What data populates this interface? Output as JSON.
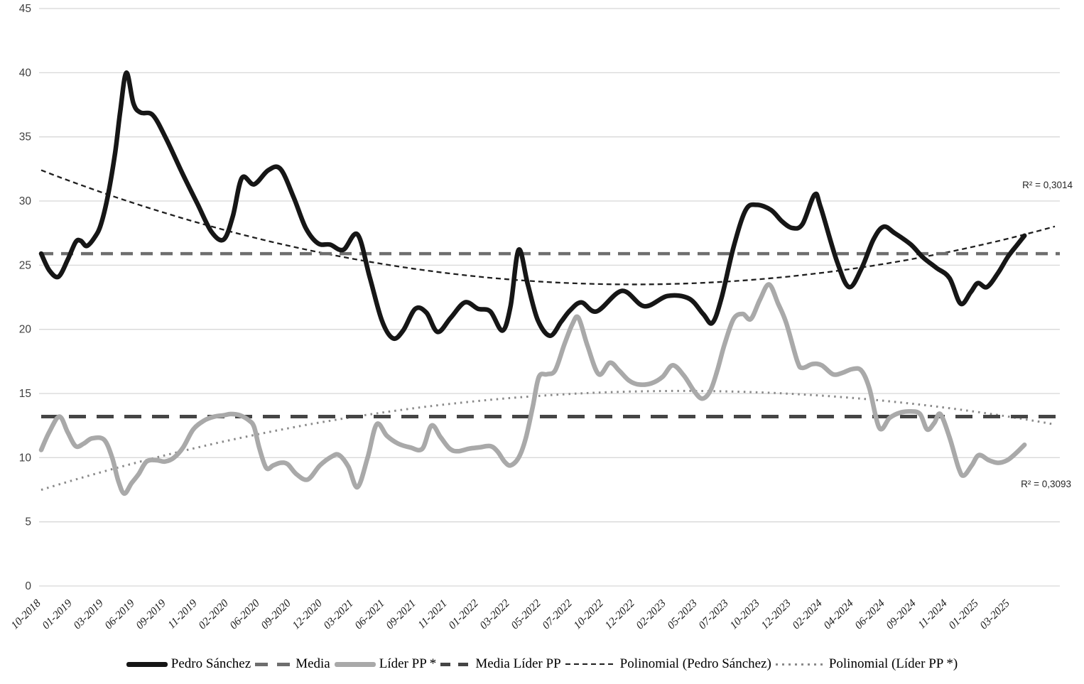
{
  "chart_data": {
    "type": "line",
    "title": "",
    "ylabel": "",
    "xlabel": "",
    "ylim": [
      0,
      45
    ],
    "y_tick_step": 5,
    "y_tick_labels": [
      "0",
      "5",
      "10",
      "15",
      "20",
      "25",
      "30",
      "35",
      "40",
      "45"
    ],
    "grid": "horizontal",
    "legend_position": "bottom",
    "x_tick_labels": [
      "10-2018",
      "01-2019",
      "03-2019",
      "06-2019",
      "09-2019",
      "11-2019",
      "02-2020",
      "06-2020",
      "09-2020",
      "12-2020",
      "03-2021",
      "06-2021",
      "09-2021",
      "11-2021",
      "01-2022",
      "03-2022",
      "05-2022",
      "07-2022",
      "10-2022",
      "12-2022",
      "02-2023",
      "05-2023",
      "07-2023",
      "10-2023",
      "12-2023",
      "02-2024",
      "04-2024",
      "06-2024",
      "09-2024",
      "11-2024",
      "01-2025",
      "03-2025"
    ],
    "series": [
      {
        "name": "Pedro Sánchez",
        "color": "#161616",
        "width": 6.5,
        "style": "solid",
        "points": [
          [
            0.0,
            25.9
          ],
          [
            0.008,
            24.6
          ],
          [
            0.017,
            24.1
          ],
          [
            0.026,
            25.4
          ],
          [
            0.034,
            26.8
          ],
          [
            0.039,
            26.9
          ],
          [
            0.045,
            26.5
          ],
          [
            0.053,
            27.2
          ],
          [
            0.059,
            28.2
          ],
          [
            0.066,
            30.5
          ],
          [
            0.073,
            33.8
          ],
          [
            0.078,
            37.0
          ],
          [
            0.084,
            40.0
          ],
          [
            0.091,
            37.6
          ],
          [
            0.098,
            36.9
          ],
          [
            0.11,
            36.7
          ],
          [
            0.123,
            34.9
          ],
          [
            0.139,
            32.2
          ],
          [
            0.154,
            29.8
          ],
          [
            0.168,
            27.6
          ],
          [
            0.18,
            27.0
          ],
          [
            0.189,
            28.8
          ],
          [
            0.198,
            31.8
          ],
          [
            0.21,
            31.3
          ],
          [
            0.224,
            32.4
          ],
          [
            0.236,
            32.5
          ],
          [
            0.249,
            30.3
          ],
          [
            0.261,
            27.9
          ],
          [
            0.273,
            26.7
          ],
          [
            0.285,
            26.6
          ],
          [
            0.298,
            26.2
          ],
          [
            0.312,
            27.4
          ],
          [
            0.324,
            24.1
          ],
          [
            0.336,
            20.7
          ],
          [
            0.347,
            19.3
          ],
          [
            0.357,
            19.9
          ],
          [
            0.369,
            21.6
          ],
          [
            0.38,
            21.3
          ],
          [
            0.391,
            19.8
          ],
          [
            0.404,
            20.9
          ],
          [
            0.418,
            22.1
          ],
          [
            0.431,
            21.6
          ],
          [
            0.443,
            21.4
          ],
          [
            0.455,
            19.9
          ],
          [
            0.463,
            21.8
          ],
          [
            0.471,
            26.2
          ],
          [
            0.48,
            23.5
          ],
          [
            0.49,
            20.7
          ],
          [
            0.502,
            19.5
          ],
          [
            0.513,
            20.6
          ],
          [
            0.522,
            21.5
          ],
          [
            0.533,
            22.1
          ],
          [
            0.548,
            21.4
          ],
          [
            0.573,
            23.0
          ],
          [
            0.595,
            21.8
          ],
          [
            0.618,
            22.6
          ],
          [
            0.639,
            22.4
          ],
          [
            0.653,
            21.2
          ],
          [
            0.662,
            20.5
          ],
          [
            0.671,
            22.4
          ],
          [
            0.683,
            26.4
          ],
          [
            0.695,
            29.3
          ],
          [
            0.706,
            29.7
          ],
          [
            0.72,
            29.3
          ],
          [
            0.731,
            28.4
          ],
          [
            0.741,
            27.9
          ],
          [
            0.751,
            28.2
          ],
          [
            0.763,
            30.5
          ],
          [
            0.769,
            29.5
          ],
          [
            0.785,
            25.3
          ],
          [
            0.797,
            23.3
          ],
          [
            0.809,
            24.7
          ],
          [
            0.821,
            27.0
          ],
          [
            0.831,
            28.0
          ],
          [
            0.842,
            27.5
          ],
          [
            0.858,
            26.6
          ],
          [
            0.87,
            25.6
          ],
          [
            0.883,
            24.8
          ],
          [
            0.896,
            24.0
          ],
          [
            0.907,
            22.0
          ],
          [
            0.917,
            22.9
          ],
          [
            0.924,
            23.6
          ],
          [
            0.933,
            23.3
          ],
          [
            0.944,
            24.4
          ],
          [
            0.954,
            25.7
          ],
          [
            0.963,
            26.6
          ],
          [
            0.97,
            27.3
          ]
        ]
      },
      {
        "name": "Líder PP *",
        "color": "#a9a9a9",
        "width": 6.5,
        "style": "solid",
        "points": [
          [
            0.0,
            10.6
          ],
          [
            0.008,
            12.0
          ],
          [
            0.018,
            13.2
          ],
          [
            0.026,
            12.0
          ],
          [
            0.034,
            10.9
          ],
          [
            0.042,
            11.1
          ],
          [
            0.05,
            11.5
          ],
          [
            0.062,
            11.4
          ],
          [
            0.07,
            10.0
          ],
          [
            0.076,
            8.2
          ],
          [
            0.082,
            7.2
          ],
          [
            0.089,
            8.0
          ],
          [
            0.096,
            8.7
          ],
          [
            0.104,
            9.7
          ],
          [
            0.114,
            9.8
          ],
          [
            0.122,
            9.7
          ],
          [
            0.131,
            10.0
          ],
          [
            0.14,
            10.8
          ],
          [
            0.15,
            12.2
          ],
          [
            0.161,
            12.9
          ],
          [
            0.171,
            13.2
          ],
          [
            0.18,
            13.3
          ],
          [
            0.187,
            13.4
          ],
          [
            0.196,
            13.3
          ],
          [
            0.205,
            12.9
          ],
          [
            0.21,
            12.4
          ],
          [
            0.215,
            10.8
          ],
          [
            0.222,
            9.2
          ],
          [
            0.229,
            9.4
          ],
          [
            0.236,
            9.6
          ],
          [
            0.243,
            9.5
          ],
          [
            0.252,
            8.7
          ],
          [
            0.263,
            8.3
          ],
          [
            0.275,
            9.4
          ],
          [
            0.287,
            10.1
          ],
          [
            0.294,
            10.2
          ],
          [
            0.303,
            9.3
          ],
          [
            0.312,
            7.7
          ],
          [
            0.322,
            10.0
          ],
          [
            0.331,
            12.6
          ],
          [
            0.341,
            11.7
          ],
          [
            0.352,
            11.1
          ],
          [
            0.364,
            10.8
          ],
          [
            0.376,
            10.7
          ],
          [
            0.385,
            12.5
          ],
          [
            0.394,
            11.6
          ],
          [
            0.403,
            10.7
          ],
          [
            0.411,
            10.5
          ],
          [
            0.422,
            10.7
          ],
          [
            0.432,
            10.8
          ],
          [
            0.443,
            10.9
          ],
          [
            0.45,
            10.5
          ],
          [
            0.457,
            9.7
          ],
          [
            0.463,
            9.4
          ],
          [
            0.471,
            10.0
          ],
          [
            0.478,
            11.5
          ],
          [
            0.485,
            14.0
          ],
          [
            0.491,
            16.3
          ],
          [
            0.499,
            16.5
          ],
          [
            0.507,
            16.8
          ],
          [
            0.516,
            18.8
          ],
          [
            0.524,
            20.4
          ],
          [
            0.53,
            20.9
          ],
          [
            0.539,
            18.7
          ],
          [
            0.55,
            16.5
          ],
          [
            0.561,
            17.4
          ],
          [
            0.57,
            16.8
          ],
          [
            0.58,
            16.0
          ],
          [
            0.59,
            15.7
          ],
          [
            0.602,
            15.8
          ],
          [
            0.613,
            16.3
          ],
          [
            0.623,
            17.2
          ],
          [
            0.634,
            16.4
          ],
          [
            0.644,
            15.2
          ],
          [
            0.652,
            14.6
          ],
          [
            0.66,
            15.2
          ],
          [
            0.667,
            16.8
          ],
          [
            0.674,
            18.8
          ],
          [
            0.683,
            20.8
          ],
          [
            0.692,
            21.2
          ],
          [
            0.7,
            20.8
          ],
          [
            0.709,
            22.3
          ],
          [
            0.718,
            23.5
          ],
          [
            0.727,
            22.0
          ],
          [
            0.735,
            20.5
          ],
          [
            0.746,
            17.5
          ],
          [
            0.751,
            17.0
          ],
          [
            0.761,
            17.3
          ],
          [
            0.77,
            17.2
          ],
          [
            0.781,
            16.5
          ],
          [
            0.79,
            16.6
          ],
          [
            0.8,
            16.9
          ],
          [
            0.809,
            16.8
          ],
          [
            0.817,
            15.4
          ],
          [
            0.827,
            12.3
          ],
          [
            0.837,
            13.1
          ],
          [
            0.847,
            13.5
          ],
          [
            0.858,
            13.6
          ],
          [
            0.867,
            13.4
          ],
          [
            0.874,
            12.2
          ],
          [
            0.881,
            12.7
          ],
          [
            0.887,
            13.4
          ],
          [
            0.896,
            11.6
          ],
          [
            0.905,
            9.2
          ],
          [
            0.91,
            8.6
          ],
          [
            0.918,
            9.4
          ],
          [
            0.925,
            10.2
          ],
          [
            0.935,
            9.8
          ],
          [
            0.944,
            9.6
          ],
          [
            0.953,
            9.8
          ],
          [
            0.961,
            10.3
          ],
          [
            0.97,
            11.0
          ]
        ]
      }
    ],
    "mean_lines": [
      {
        "name": "Media",
        "value": 25.9,
        "color": "#6e6e6e",
        "width": 4.5,
        "dash": "17 11"
      },
      {
        "name": "Media Líder PP",
        "value": 13.2,
        "color": "#454545",
        "width": 5,
        "dash": "24 15"
      }
    ],
    "trend_lines": [
      {
        "name": "Polinomial (Pedro Sánchez)",
        "color": "#1f1f1f",
        "width": 2.3,
        "dash": "7 5",
        "vertex_t": 0.584,
        "vertex_v": 23.5,
        "a": 26.1,
        "r2_label": "R² = 0,3014"
      },
      {
        "name": "Polinomial (Líder PP *)",
        "color": "#8a8a8a",
        "width": 3,
        "dash": "2.5 6",
        "vertex_t": 0.632,
        "vertex_v": 15.2,
        "a": -19.3,
        "r2_label": "R² = 0,3093"
      }
    ],
    "annotations": [
      {
        "text": "R² = 0,3014"
      },
      {
        "text": "R² = 0,3093"
      }
    ],
    "legend": [
      {
        "label": "Pedro Sánchez",
        "swatch": "solid-black"
      },
      {
        "label": "Media",
        "swatch": "dash-gray"
      },
      {
        "label": "Líder PP *",
        "swatch": "solid-gray"
      },
      {
        "label": "Media Líder PP",
        "swatch": "dash-dark"
      },
      {
        "label": "Polinomial (Pedro Sánchez)",
        "swatch": "dash-fine"
      },
      {
        "label": "Polinomial (Líder PP *)",
        "swatch": "dot-gray"
      }
    ],
    "colors": {
      "grid": "#d8d8d8",
      "axis_text": "#3f3f3f",
      "x_label_text": "#1a1a1a"
    }
  }
}
